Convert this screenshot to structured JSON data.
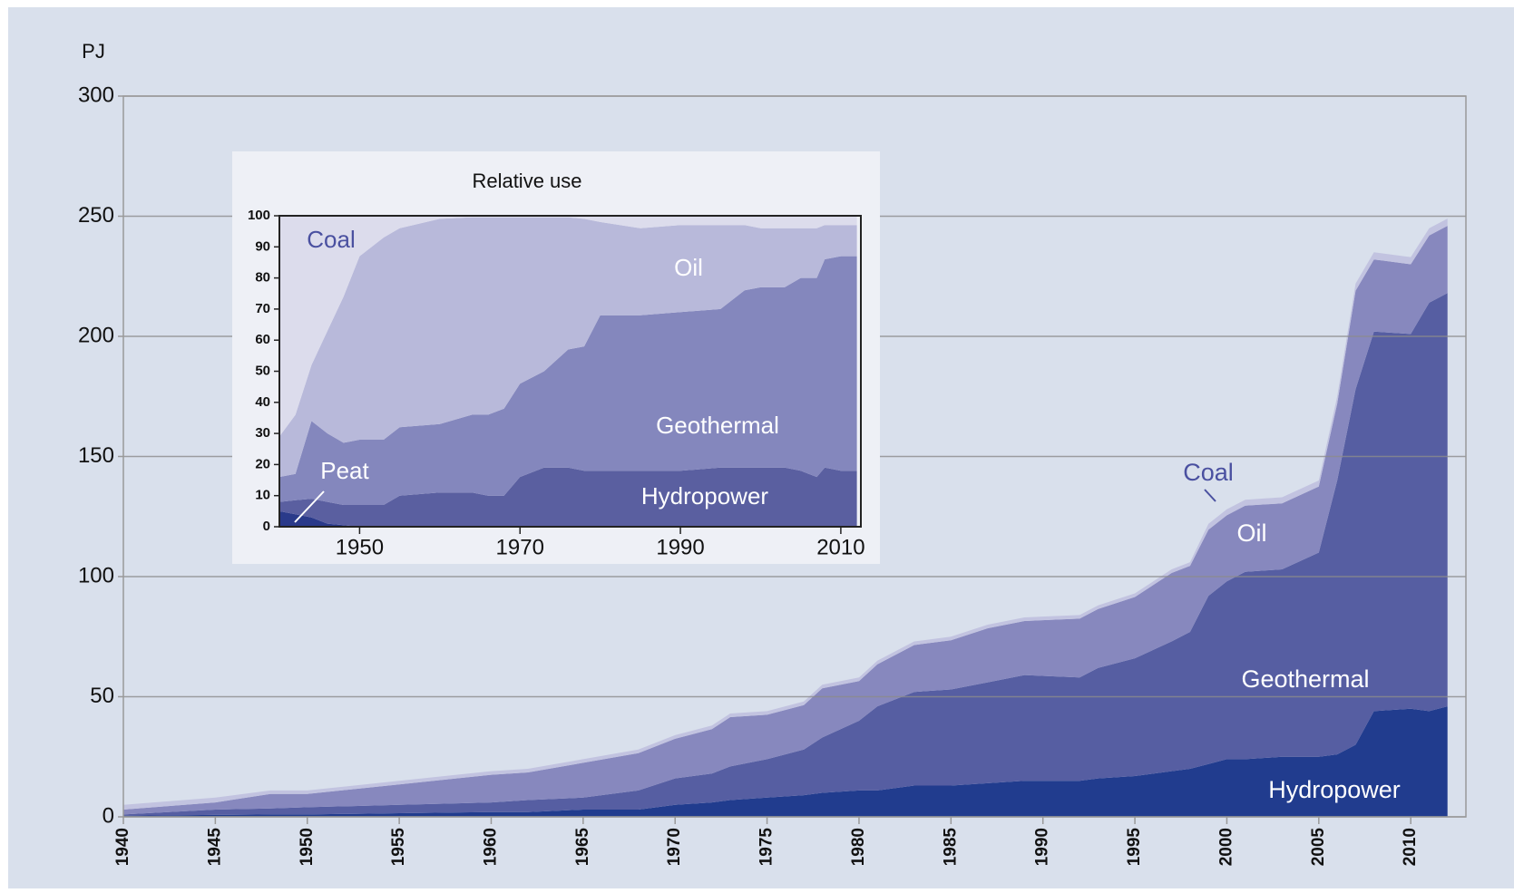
{
  "chart_data": [
    {
      "type": "area",
      "stacked": true,
      "y_label": "PJ",
      "x": [
        1940,
        1945,
        1948,
        1950,
        1955,
        1960,
        1962,
        1965,
        1968,
        1970,
        1972,
        1973,
        1975,
        1977,
        1978,
        1980,
        1981,
        1983,
        1985,
        1987,
        1989,
        1992,
        1993,
        1995,
        1997,
        1998,
        1999,
        2000,
        2001,
        2003,
        2005,
        2006,
        2007,
        2008,
        2010,
        2011,
        2012
      ],
      "series": [
        {
          "name": "Hydropower",
          "color": "#213c8e",
          "values": [
            0.5,
            0.8,
            1,
            1,
            1.5,
            2,
            2,
            3,
            3,
            5,
            6,
            7,
            8,
            9,
            10,
            11,
            11,
            13,
            13,
            14,
            15,
            15,
            16,
            17,
            19,
            20,
            22,
            24,
            24,
            25,
            25,
            26,
            30,
            44,
            45,
            44,
            46
          ]
        },
        {
          "name": "Geothermal",
          "color": "#565ea2",
          "values": [
            0.5,
            2.2,
            2.5,
            3,
            3.5,
            4,
            5,
            5,
            8,
            11,
            12,
            14,
            16,
            19,
            23,
            29,
            35,
            39,
            40,
            42,
            44,
            43,
            46,
            49,
            54,
            57,
            70,
            74,
            78,
            78,
            85,
            114,
            148,
            158,
            156,
            170,
            172
          ]
        },
        {
          "name": "Oil",
          "color": "#8788be",
          "values": [
            2,
            3,
            6,
            5.5,
            8.5,
            11.5,
            11.5,
            14.5,
            15.5,
            16.5,
            18.5,
            20.5,
            18.5,
            18.5,
            20.5,
            16.5,
            17.5,
            19.5,
            20.5,
            22.5,
            22.5,
            24.5,
            24.5,
            25.5,
            28.5,
            27.5,
            27.5,
            27.5,
            27.5,
            27.5,
            27.5,
            32,
            41,
            30,
            29,
            28,
            28
          ]
        },
        {
          "name": "Coal",
          "color": "#c2c3e0",
          "values": [
            2,
            2,
            1.5,
            1.5,
            1.5,
            1.5,
            1.5,
            1.5,
            1.5,
            1.5,
            1.5,
            1.5,
            1.5,
            1.5,
            1.5,
            1.5,
            1.5,
            1.5,
            1.5,
            1.5,
            1.5,
            1.5,
            1.5,
            1.5,
            1.5,
            1.5,
            2.5,
            2.5,
            2.5,
            2.5,
            2.5,
            3,
            3,
            3,
            3,
            3,
            3
          ]
        }
      ],
      "xlim": [
        1940,
        2013
      ],
      "xticks": [
        1940,
        1945,
        1950,
        1955,
        1960,
        1965,
        1970,
        1975,
        1980,
        1985,
        1990,
        1995,
        2000,
        2005,
        2010
      ],
      "ylim": [
        0,
        300
      ],
      "yticks": [
        0,
        50,
        100,
        150,
        200,
        250,
        300
      ],
      "grid": true
    },
    {
      "type": "area",
      "stacked": true,
      "title": "Relative use",
      "x": [
        1940,
        1942,
        1944,
        1946,
        1948,
        1950,
        1953,
        1955,
        1960,
        1964,
        1966,
        1968,
        1970,
        1973,
        1976,
        1978,
        1980,
        1985,
        1990,
        1995,
        1998,
        2000,
        2003,
        2005,
        2007,
        2008,
        2010,
        2012
      ],
      "series": [
        {
          "name": "Peat",
          "color": "#2a3a8a",
          "values": [
            5,
            4,
            3,
            1,
            0.5,
            0,
            0,
            0,
            0,
            0,
            0,
            0,
            0,
            0,
            0,
            0,
            0,
            0,
            0,
            0,
            0,
            0,
            0,
            0,
            0,
            0,
            0,
            0
          ]
        },
        {
          "name": "Hydropower",
          "color": "#5a5fa0",
          "values": [
            3,
            4.5,
            6,
            7,
            6.5,
            7,
            7,
            10,
            11,
            11,
            10,
            10,
            16,
            19,
            19,
            18,
            18,
            18,
            18,
            19,
            19,
            19,
            19,
            18,
            16,
            19,
            18,
            18
          ]
        },
        {
          "name": "Geothermal",
          "color": "#8487bd",
          "values": [
            8,
            8.5,
            25,
            22,
            20,
            21,
            21,
            22,
            22,
            25,
            26,
            28,
            30,
            31,
            38,
            40,
            50,
            50,
            51,
            51,
            57,
            58,
            58,
            62,
            64,
            67,
            69,
            69
          ]
        },
        {
          "name": "Oil",
          "color": "#b8b9da",
          "values": [
            13,
            19,
            18,
            33,
            47,
            59,
            65,
            64,
            66,
            63.5,
            63.5,
            61.5,
            53.5,
            49.5,
            42.5,
            41,
            30,
            28,
            28,
            27,
            21,
            19,
            19,
            16,
            16,
            11,
            10,
            10
          ]
        },
        {
          "name": "Coal",
          "color": "#dcdcec",
          "values": [
            71,
            64,
            48,
            37,
            26,
            13,
            7,
            4,
            1,
            0.5,
            0.5,
            0.5,
            0.5,
            0.5,
            0.5,
            1,
            2,
            4,
            3,
            3,
            3,
            4,
            4,
            4,
            4,
            3,
            3,
            3
          ]
        }
      ],
      "xlim": [
        1940,
        2012.5
      ],
      "xticks": [
        1950,
        1970,
        1990,
        2010
      ],
      "ylim": [
        0,
        100
      ],
      "yticks": [
        0,
        10,
        20,
        30,
        40,
        50,
        60,
        70,
        80,
        90,
        100
      ],
      "grid": false
    }
  ]
}
